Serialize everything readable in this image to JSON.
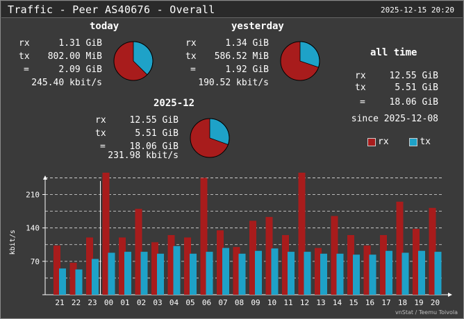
{
  "header": {
    "title": "Traffic - Peer AS40676 - Overall",
    "timestamp": "2025-12-15 20:20"
  },
  "today": {
    "heading": "today",
    "rx_label": "rx",
    "rx": "1.31 GiB",
    "tx_label": "tx",
    "tx": "802.00 MiB",
    "total_label": "=",
    "total": "2.09 GiB",
    "rate": "245.40 kbit/s",
    "rx_frac": 0.626
  },
  "yesterday": {
    "heading": "yesterday",
    "rx_label": "rx",
    "rx": "1.34 GiB",
    "tx_label": "tx",
    "tx": "586.52 MiB",
    "total_label": "=",
    "total": "1.92 GiB",
    "rate": "190.52 kbit/s",
    "rx_frac": 0.698
  },
  "month": {
    "heading": "2025-12",
    "rx_label": "rx",
    "rx": "12.55 GiB",
    "tx_label": "tx",
    "tx": "5.51 GiB",
    "total_label": "=",
    "total": "18.06 GiB",
    "rate": "231.98 kbit/s",
    "rx_frac": 0.695
  },
  "alltime": {
    "heading": "all time",
    "rx_label": "rx",
    "rx": "12.55 GiB",
    "tx_label": "tx",
    "tx": "5.51 GiB",
    "total_label": "=",
    "total": "18.06 GiB",
    "since": "since 2025-12-08"
  },
  "legend": {
    "rx": "rx",
    "tx": "tx"
  },
  "colors": {
    "rx": "#a81c1c",
    "tx": "#1ea2c8",
    "background": "#3a3a3a",
    "grid": "#ffffff"
  },
  "credit": "vnStat / Teemu Toivola",
  "chart_data": {
    "type": "bar",
    "ylabel": "kbit/s",
    "ylim": [
      0,
      250
    ],
    "yticks": [
      70,
      140,
      210
    ],
    "categories": [
      "21",
      "22",
      "23",
      "00",
      "01",
      "02",
      "03",
      "04",
      "05",
      "06",
      "07",
      "08",
      "09",
      "10",
      "11",
      "12",
      "13",
      "14",
      "15",
      "16",
      "17",
      "18",
      "19",
      "20"
    ],
    "series": [
      {
        "name": "rx",
        "values": [
          103,
          67,
          120,
          260,
          120,
          180,
          110,
          125,
          120,
          245,
          135,
          100,
          155,
          163,
          125,
          285,
          98,
          165,
          125,
          103,
          125,
          195,
          138,
          182
        ]
      },
      {
        "name": "tx",
        "values": [
          55,
          53,
          75,
          88,
          90,
          90,
          86,
          102,
          86,
          90,
          98,
          86,
          92,
          97,
          90,
          90,
          86,
          86,
          84,
          84,
          92,
          88,
          92,
          90
        ]
      }
    ]
  }
}
